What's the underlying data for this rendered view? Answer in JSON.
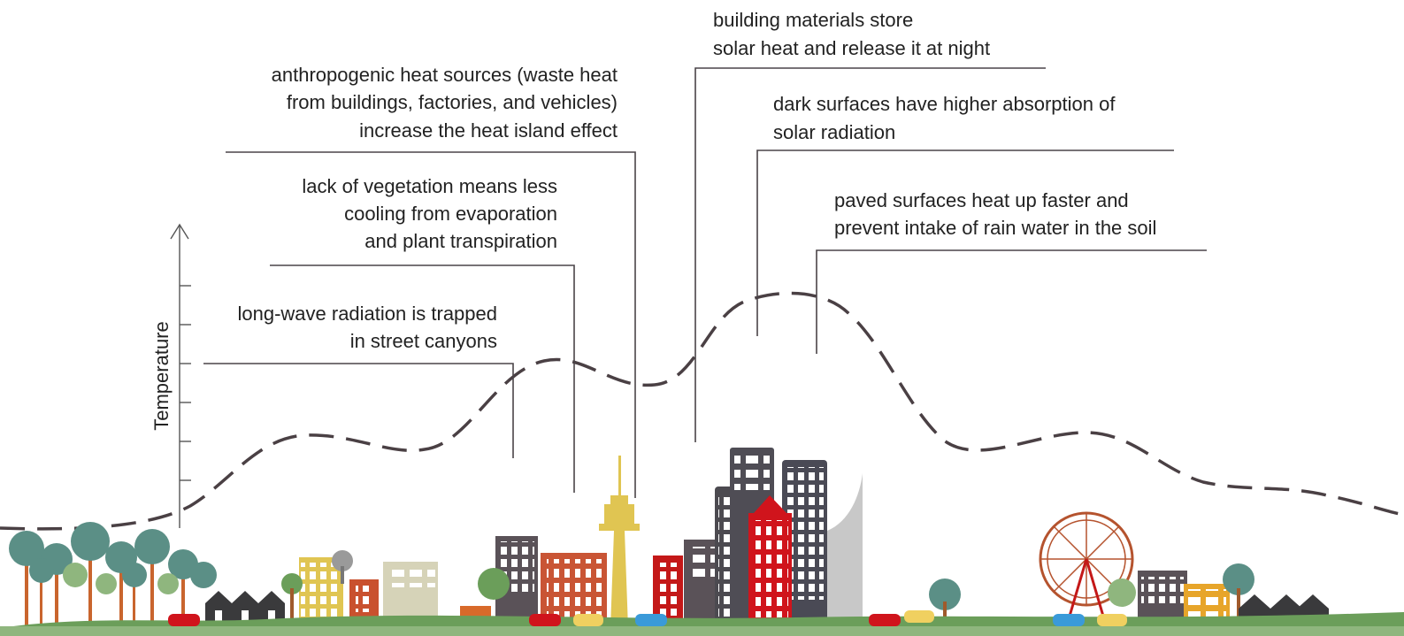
{
  "y_axis_label": "Temperature",
  "annotations": [
    {
      "lines": [
        "long-wave radiation is trapped",
        "in street canyons"
      ]
    },
    {
      "lines": [
        "lack of vegetation means less",
        "cooling from evaporation",
        "and plant transpiration"
      ]
    },
    {
      "lines": [
        "anthropogenic heat sources (waste heat",
        "from buildings, factories, and vehicles)",
        "increase the heat island effect"
      ]
    },
    {
      "lines": [
        "building materials store",
        "solar heat and release it at night"
      ]
    },
    {
      "lines": [
        "dark surfaces have higher absorption of",
        "solar radiation"
      ]
    },
    {
      "lines": [
        "paved surfaces heat up faster and",
        "prevent intake of rain water in the soil"
      ]
    }
  ]
}
